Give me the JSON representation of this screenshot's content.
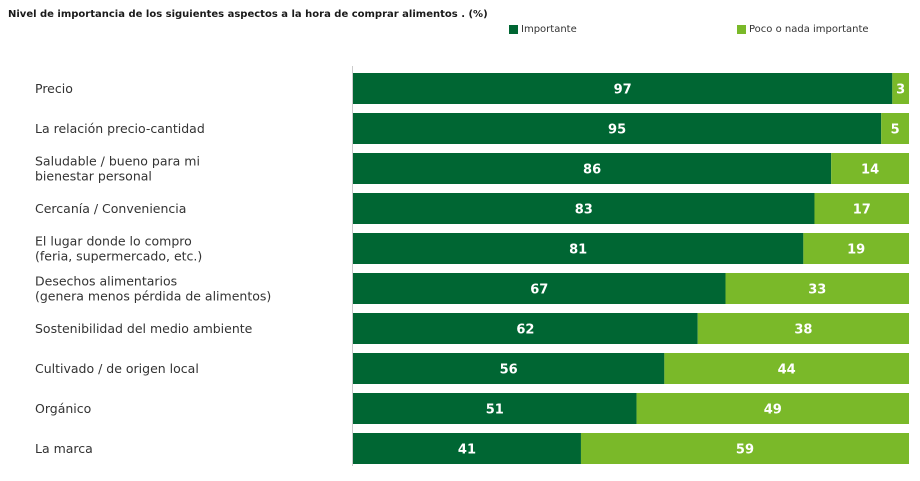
{
  "chart_data": {
    "type": "bar",
    "orientation": "horizontal",
    "stacked": true,
    "title": "Nivel de importancia  de los siguientes aspectos a la hora de comprar alimentos . (%)",
    "categories": [
      [
        "Precio"
      ],
      [
        "La relación precio-cantidad"
      ],
      [
        "Saludable / bueno para mi",
        "bienestar personal"
      ],
      [
        "Cercanía / Conveniencia"
      ],
      [
        "El lugar donde lo compro",
        "(feria, supermercado, etc.)"
      ],
      [
        "Desechos alimentarios",
        "(genera menos pérdida de alimentos)"
      ],
      [
        "Sostenibilidad del medio ambiente"
      ],
      [
        "Cultivado / de origen local"
      ],
      [
        "Orgánico"
      ],
      [
        "La marca"
      ]
    ],
    "series": [
      {
        "name": "Importante",
        "color": "#006633",
        "values": [
          97,
          95,
          86,
          83,
          81,
          67,
          62,
          56,
          51,
          41
        ]
      },
      {
        "name": "Poco o  nada importante",
        "color": "#7ab929",
        "values": [
          3,
          5,
          14,
          17,
          19,
          33,
          38,
          44,
          49,
          59
        ]
      }
    ],
    "xlim": [
      0,
      100
    ],
    "legend_position": "top"
  }
}
